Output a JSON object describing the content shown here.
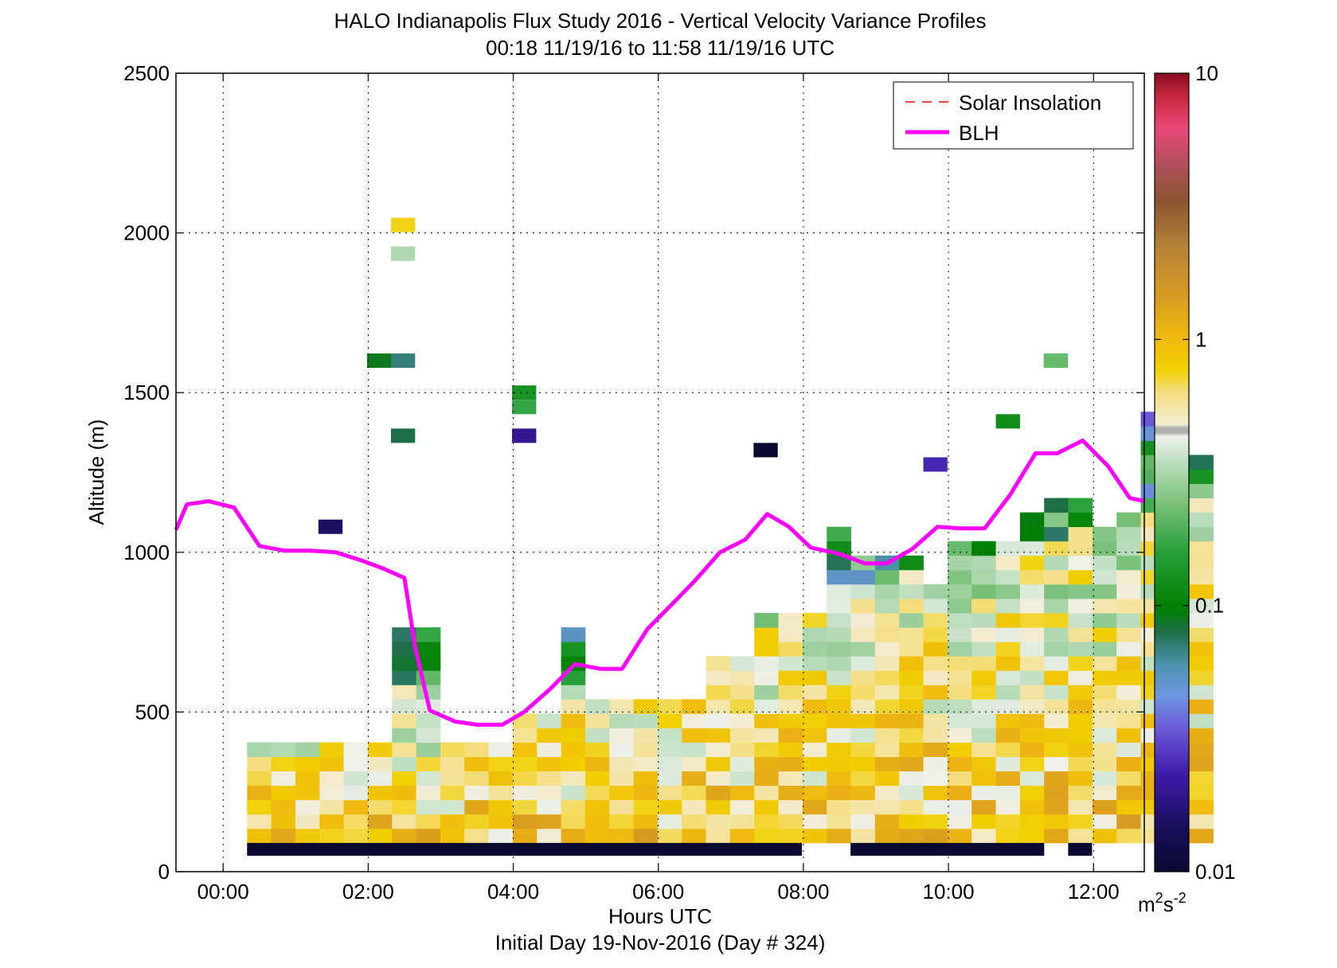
{
  "chart_data": {
    "type": "heatmap",
    "title": "HALO Indianapolis Flux Study 2016 - Vertical Velocity Variance Profiles",
    "subtitle": "00:18 11/19/16 to 11:58 11/19/16  UTC",
    "xlabel": "Hours UTC",
    "xlabel2": "Initial Day 19-Nov-2016 (Day # 324)",
    "ylabel": "Altitude (m)",
    "xlim": [
      -0.65,
      12.7
    ],
    "ylim": [
      0,
      2500
    ],
    "x_ticks": [
      0,
      2,
      4,
      6,
      8,
      10,
      12
    ],
    "x_tick_labels": [
      "00:00",
      "02:00",
      "04:00",
      "06:00",
      "08:00",
      "10:00",
      "12:00"
    ],
    "y_ticks": [
      0,
      500,
      1000,
      1500,
      2000,
      2500
    ],
    "y_tick_labels": [
      "0",
      "500",
      "1000",
      "1500",
      "2000",
      "2500"
    ],
    "grid": true,
    "colorbar": {
      "scale": "log",
      "range": [
        0.01,
        10
      ],
      "ticks": [
        0.01,
        0.1,
        1,
        10
      ],
      "tick_labels": [
        "0.01",
        "0.1",
        "1",
        "10"
      ],
      "unit_main": "m",
      "unit_sup1": "2",
      "unit_mid": "s",
      "unit_sup2": "-2"
    },
    "legend": {
      "placement": "top-right",
      "entries": [
        {
          "label": "Solar Insolation",
          "color": "#ff0000",
          "style": "dashed"
        },
        {
          "label": "BLH",
          "color": "#ff00ff",
          "style": "solid"
        }
      ]
    },
    "grid_spec": {
      "t0": 0.33,
      "dt": 0.333,
      "z0": 90,
      "dz": 45,
      "row_tops": [
        7,
        7,
        7,
        7,
        7,
        7,
        15,
        15,
        7,
        7,
        7,
        9,
        9,
        15,
        10,
        10,
        10,
        10,
        10,
        13,
        13,
        16,
        16,
        16,
        22,
        20,
        20,
        20,
        18,
        21,
        21,
        21,
        23,
        24,
        24,
        22,
        23,
        30,
        28,
        27
      ]
    },
    "data_gaps": [
      {
        "t0": 1.7,
        "t1": 1.82,
        "z0": 600,
        "z1": 1250
      },
      {
        "t0": 3.0,
        "t1": 3.35,
        "z0": 550,
        "z1": 1250
      },
      {
        "t0": 4.5,
        "t1": 4.85,
        "z0": 780,
        "z1": 1250
      },
      {
        "t0": 2.3,
        "t1": 2.6,
        "z0": 1640,
        "z1": 1920
      }
    ],
    "isolated_cells": [
      {
        "t": 2.48,
        "z": 2025,
        "v": 0.75
      },
      {
        "t": 2.48,
        "z": 1935,
        "v": 0.32
      },
      {
        "t": 2.15,
        "z": 1600,
        "v": 0.09
      },
      {
        "t": 2.48,
        "z": 1600,
        "v": 0.07
      },
      {
        "t": 2.48,
        "z": 1365,
        "v": 0.08
      },
      {
        "t": 4.15,
        "z": 1500,
        "v": 0.13
      },
      {
        "t": 4.15,
        "z": 1455,
        "v": 0.17
      },
      {
        "t": 4.15,
        "z": 1365,
        "v": 0.02
      },
      {
        "t": 1.48,
        "z": 1080,
        "v": 0.015
      },
      {
        "t": 7.48,
        "z": 1320,
        "v": 0.01
      },
      {
        "t": 9.82,
        "z": 1275,
        "v": 0.025
      },
      {
        "t": 10.82,
        "z": 1410,
        "v": 0.12
      },
      {
        "t": 11.48,
        "z": 1600,
        "v": 0.22
      }
    ],
    "baseline_bar": {
      "z0": 50,
      "z1": 90,
      "value": 0.01,
      "segments": [
        [
          0.33,
          7.98
        ],
        [
          8.65,
          11.32
        ],
        [
          11.65,
          11.98
        ]
      ]
    },
    "blh": {
      "x": [
        -0.65,
        -0.5,
        -0.2,
        0.15,
        0.5,
        0.85,
        1.2,
        1.55,
        1.9,
        2.2,
        2.5,
        2.65,
        2.85,
        3.2,
        3.5,
        3.85,
        4.15,
        4.5,
        4.85,
        5.2,
        5.5,
        5.85,
        6.2,
        6.5,
        6.85,
        7.2,
        7.5,
        7.8,
        8.1,
        8.5,
        8.85,
        9.15,
        9.5,
        9.85,
        10.15,
        10.5,
        10.85,
        11.2,
        11.5,
        11.85,
        12.2,
        12.5,
        12.7
      ],
      "y": [
        1070,
        1150,
        1160,
        1140,
        1020,
        1005,
        1005,
        1000,
        975,
        950,
        920,
        700,
        505,
        470,
        460,
        460,
        500,
        570,
        650,
        635,
        635,
        760,
        840,
        910,
        1000,
        1040,
        1120,
        1080,
        1015,
        995,
        965,
        965,
        1010,
        1080,
        1075,
        1075,
        1180,
        1310,
        1310,
        1350,
        1270,
        1170,
        1160
      ]
    }
  }
}
